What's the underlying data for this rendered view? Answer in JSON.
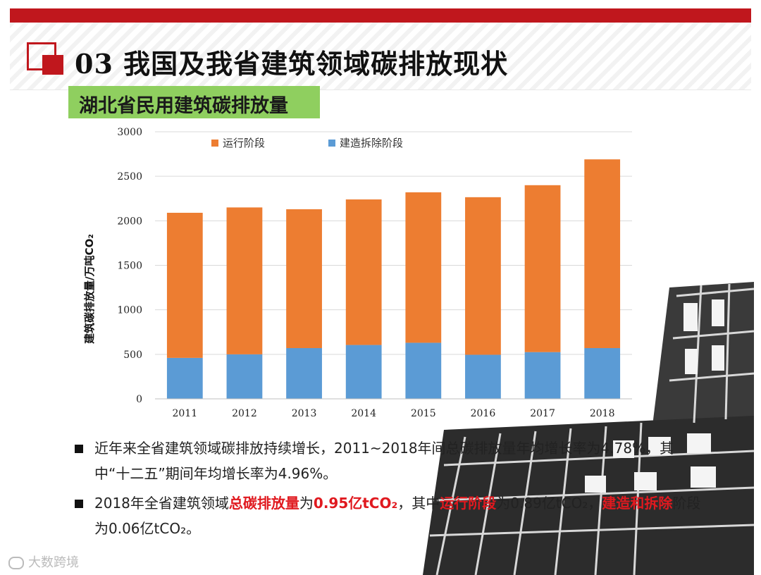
{
  "header": {
    "title": "03 我国及我省建筑领域碳排放现状",
    "subtitle": "湖北省民用建筑碳排放量"
  },
  "chart_data": {
    "type": "bar",
    "stacked": true,
    "categories": [
      "2011",
      "2012",
      "2013",
      "2014",
      "2015",
      "2016",
      "2017",
      "2018"
    ],
    "series": [
      {
        "name": "建造拆除阶段",
        "color": "#5b9bd5",
        "values": [
          460,
          500,
          570,
          605,
          630,
          495,
          525,
          570
        ]
      },
      {
        "name": "运行阶段",
        "color": "#ed7d31",
        "values": [
          1630,
          1650,
          1560,
          1635,
          1690,
          1770,
          1875,
          2120
        ]
      }
    ],
    "legend_order": [
      "运行阶段",
      "建造拆除阶段"
    ],
    "legend_position": "top",
    "ylabel": "建筑碳排放量/万吨CO₂",
    "ylim": [
      0,
      3000
    ],
    "yticks": [
      0,
      500,
      1000,
      1500,
      2000,
      2500,
      3000
    ],
    "grid": true
  },
  "bullets": [
    {
      "parts": [
        {
          "text": "近年来全省建筑领域碳排放持续增长，2011~2018年间总碳排放量年均增长率为4.78%，其中“十二五”期间年均增长率为4.96%。",
          "emph": false
        }
      ]
    },
    {
      "parts": [
        {
          "text": "2018年全省建筑领域",
          "emph": false
        },
        {
          "text": "总碳排放量",
          "emph": true
        },
        {
          "text": "为",
          "emph": false
        },
        {
          "text": "0.95亿tCO₂",
          "emph": true
        },
        {
          "text": "，其中",
          "emph": false
        },
        {
          "text": "运行阶段",
          "emph": true
        },
        {
          "text": "为0.89亿tCO₂，",
          "emph": false
        },
        {
          "text": "建造和拆除",
          "emph": true
        },
        {
          "text": "阶段为0.06亿tCO₂。",
          "emph": false
        }
      ]
    }
  ],
  "watermark": "大数跨境"
}
